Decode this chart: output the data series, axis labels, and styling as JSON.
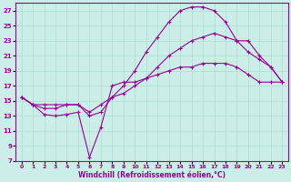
{
  "xlabel": "Windchill (Refroidissement éolien,°C)",
  "bg_color": "#cceee8",
  "grid_color": "#aaddcc",
  "line_color": "#990099",
  "xlim": [
    -0.5,
    23.5
  ],
  "ylim": [
    7,
    28
  ],
  "xticks": [
    0,
    1,
    2,
    3,
    4,
    5,
    6,
    7,
    8,
    9,
    10,
    11,
    12,
    13,
    14,
    15,
    16,
    17,
    18,
    19,
    20,
    21,
    22,
    23
  ],
  "yticks": [
    7,
    9,
    11,
    13,
    15,
    17,
    19,
    21,
    23,
    25,
    27
  ],
  "curve1_x": [
    0,
    1,
    2,
    3,
    4,
    5,
    6,
    7,
    8,
    9,
    10,
    11,
    12,
    13,
    14,
    15,
    16,
    17,
    18,
    19,
    20,
    21,
    22,
    23
  ],
  "curve1_y": [
    15.5,
    14.5,
    13.2,
    13.0,
    13.2,
    13.5,
    7.5,
    11.5,
    17.0,
    17.5,
    17.5,
    18.0,
    18.5,
    19.0,
    19.5,
    19.5,
    20.0,
    20.0,
    20.0,
    19.5,
    18.5,
    17.5,
    17.5,
    17.5
  ],
  "curve2_x": [
    0,
    1,
    2,
    3,
    4,
    5,
    6,
    7,
    8,
    9,
    10,
    11,
    12,
    13,
    14,
    15,
    16,
    17,
    18,
    19,
    20,
    21,
    22,
    23
  ],
  "curve2_y": [
    15.5,
    14.5,
    14.0,
    14.0,
    14.5,
    14.5,
    13.0,
    13.5,
    15.5,
    17.0,
    19.0,
    21.5,
    23.5,
    25.5,
    27.0,
    27.5,
    27.5,
    27.0,
    25.5,
    23.0,
    21.5,
    20.5,
    19.5,
    17.5
  ],
  "curve3_x": [
    0,
    1,
    2,
    3,
    4,
    5,
    6,
    7,
    8,
    9,
    10,
    11,
    12,
    13,
    14,
    15,
    16,
    17,
    18,
    19,
    20,
    21,
    22,
    23
  ],
  "curve3_y": [
    15.5,
    14.5,
    14.5,
    14.5,
    14.5,
    14.5,
    13.5,
    14.5,
    15.5,
    16.0,
    17.0,
    18.0,
    19.5,
    21.0,
    22.0,
    23.0,
    23.5,
    24.0,
    23.5,
    23.0,
    23.0,
    21.0,
    19.5,
    17.5
  ]
}
